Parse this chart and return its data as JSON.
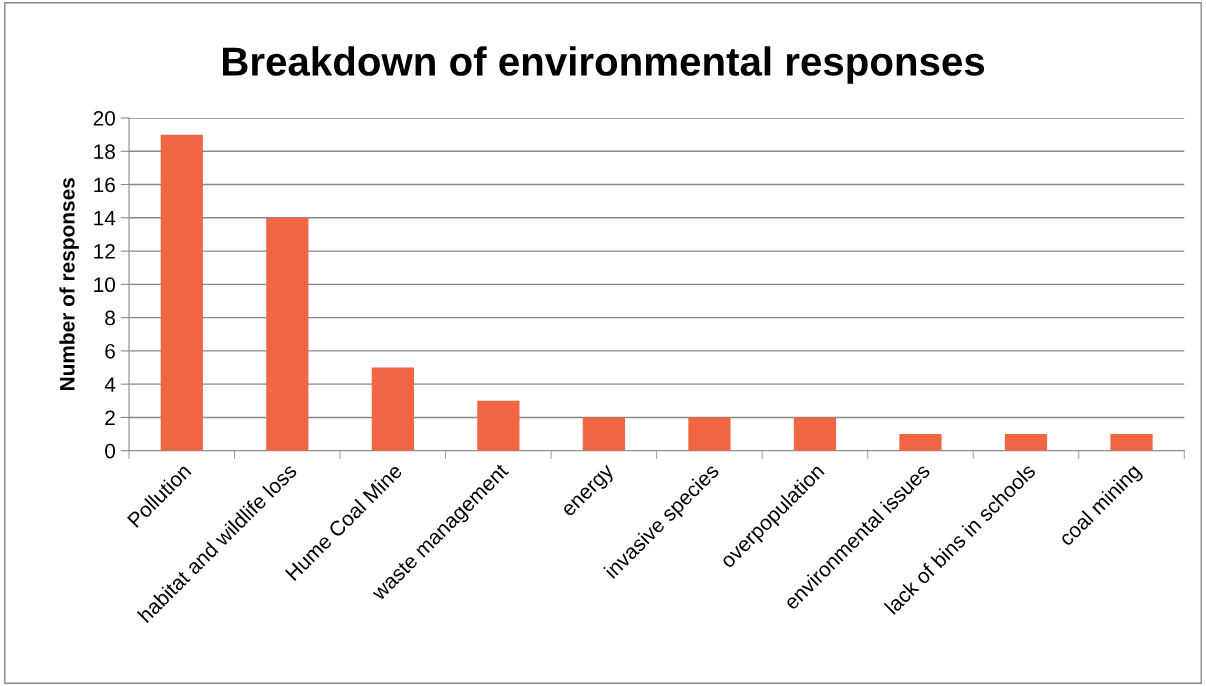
{
  "chart_data": {
    "type": "bar",
    "title": "Breakdown of environmental responses",
    "ylabel": "Number of responses",
    "categories": [
      "Pollution",
      "habitat and wildlife loss",
      "Hume Coal Mine",
      "waste management",
      "energy",
      "invasive species",
      "overpopulation",
      "environmental issues",
      "lack of bins in schools",
      "coal mining"
    ],
    "values": [
      19,
      14,
      5,
      3,
      2,
      2,
      2,
      1,
      1,
      1
    ],
    "color": "#f06542",
    "ylim": [
      0,
      20
    ],
    "yticks": [
      0,
      2,
      4,
      6,
      8,
      10,
      12,
      14,
      16,
      18,
      20
    ],
    "grid": "y",
    "legend": false
  }
}
